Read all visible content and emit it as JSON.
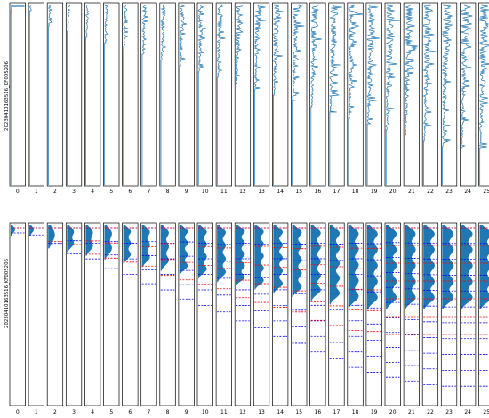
{
  "chart_data": [
    {
      "type": "line",
      "title": "",
      "ylabel": "20230410163516_KF005206",
      "categories": [
        "0",
        "1",
        "2",
        "3",
        "4",
        "5",
        "6",
        "7",
        "8",
        "9",
        "10",
        "11",
        "12",
        "13",
        "14",
        "15",
        "16",
        "17",
        "18",
        "19",
        "20",
        "21",
        "22",
        "23",
        "24",
        "25"
      ],
      "grid": false,
      "series_color": "#1f77b4",
      "layout_note": "26 vertical panels, one trace per panel"
    },
    {
      "type": "area",
      "title": "",
      "ylabel": "20230410163516_KF005206",
      "categories": [
        "0",
        "1",
        "2",
        "3",
        "4",
        "5",
        "6",
        "7",
        "8",
        "9",
        "10",
        "11",
        "12",
        "13",
        "14",
        "15",
        "16",
        "17",
        "18",
        "19",
        "20",
        "21",
        "22",
        "23",
        "24",
        "25"
      ],
      "grid": false,
      "series_color": "#1f77b4",
      "marker_colors": {
        "detected": "#ff0000",
        "reference": "#0000ff"
      }
    }
  ]
}
